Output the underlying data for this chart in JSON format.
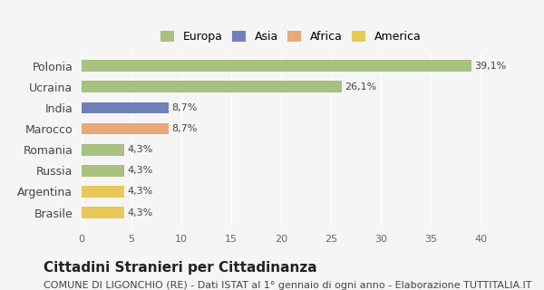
{
  "categories": [
    "Polonia",
    "Ucraina",
    "India",
    "Marocco",
    "Romania",
    "Russia",
    "Argentina",
    "Brasile"
  ],
  "values": [
    39.1,
    26.1,
    8.7,
    8.7,
    4.3,
    4.3,
    4.3,
    4.3
  ],
  "labels": [
    "39,1%",
    "26,1%",
    "8,7%",
    "8,7%",
    "4,3%",
    "4,3%",
    "4,3%",
    "4,3%"
  ],
  "colors": [
    "#a8c080",
    "#a8c080",
    "#7080b8",
    "#e8a878",
    "#a8c080",
    "#a8c080",
    "#e8c858",
    "#e8c858"
  ],
  "legend_labels": [
    "Europa",
    "Asia",
    "Africa",
    "America"
  ],
  "legend_colors": [
    "#a8c080",
    "#7080b8",
    "#e8a878",
    "#e8c858"
  ],
  "xlim": [
    0,
    42
  ],
  "xticks": [
    0,
    5,
    10,
    15,
    20,
    25,
    30,
    35,
    40
  ],
  "title": "Cittadini Stranieri per Cittadinanza",
  "subtitle": "COMUNE DI LIGONCHIO (RE) - Dati ISTAT al 1° gennaio di ogni anno - Elaborazione TUTTITALIA.IT",
  "bg_color": "#f5f5f5",
  "bar_height": 0.55,
  "title_fontsize": 11,
  "subtitle_fontsize": 8
}
